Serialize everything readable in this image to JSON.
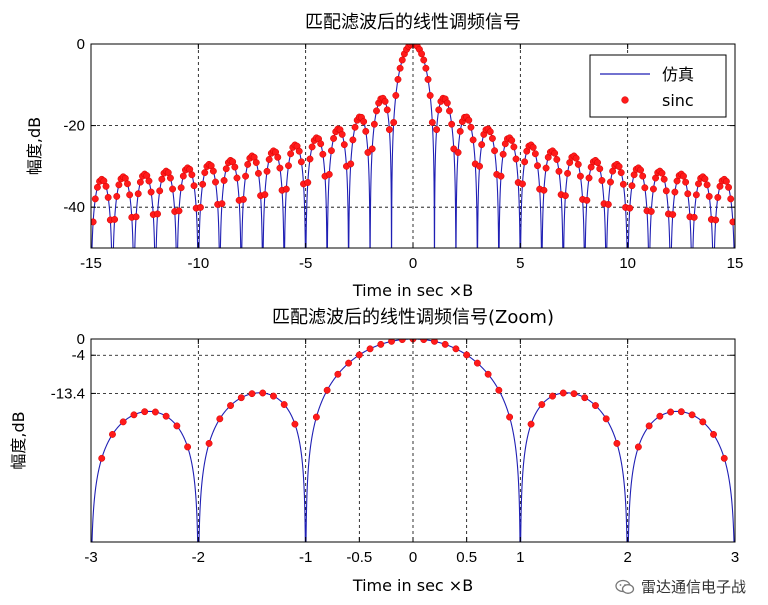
{
  "chart_data": [
    {
      "type": "line",
      "title": "匹配滤波后的线性调频信号",
      "xlabel": "Time in sec ×B",
      "ylabel": "幅度,dB",
      "xlim": [
        -15,
        15
      ],
      "ylim": [
        -50,
        0
      ],
      "xticks": [
        -15,
        -10,
        -5,
        0,
        5,
        10,
        15
      ],
      "xtick_labels": [
        "-15",
        "-10",
        "-5",
        "0",
        "5",
        "10",
        "15"
      ],
      "yticks": [
        0,
        -20,
        -40
      ],
      "ytick_labels": [
        "0",
        "-20",
        "-40"
      ],
      "grid": true,
      "legend": {
        "placement": "top-right",
        "entries": [
          "仿真",
          "sinc"
        ]
      },
      "series": [
        {
          "name": "仿真",
          "kind": "line",
          "color": "#1f1fb4",
          "function": "20*log10(|sinc(t)|), t in [-15, 15]"
        },
        {
          "name": "sinc",
          "kind": "scatter",
          "color": "#ff1a1a",
          "sample_step": 0.1,
          "function": "20*log10(|sinc(t)|) at samples"
        }
      ]
    },
    {
      "type": "line",
      "title": "匹配滤波后的线性调频信号(Zoom)",
      "xlabel": "Time in sec ×B",
      "ylabel": "幅度,dB",
      "xlim": [
        -3,
        3
      ],
      "ylim": [
        -50,
        0
      ],
      "xticks": [
        -3,
        -2,
        -1,
        -0.5,
        0,
        0.5,
        1,
        2,
        3
      ],
      "xtick_labels": [
        "-3",
        "-2",
        "-1",
        "-0.5",
        "0",
        "0.5",
        "1",
        "2",
        "3"
      ],
      "yticks": [
        0,
        -4,
        -13.4
      ],
      "ytick_labels": [
        "0",
        "-4",
        "-13.4"
      ],
      "grid": true,
      "series": [
        {
          "name": "仿真",
          "kind": "line",
          "color": "#1f1fb4",
          "function": "20*log10(|sinc(t)|), t in [-3, 3]"
        },
        {
          "name": "sinc",
          "kind": "scatter",
          "color": "#ff1a1a",
          "sample_step": 0.1,
          "function": "20*log10(|sinc(t)|) at samples"
        }
      ]
    }
  ],
  "watermark": {
    "text": "雷达通信电子战",
    "icon": "wechat-icon"
  }
}
